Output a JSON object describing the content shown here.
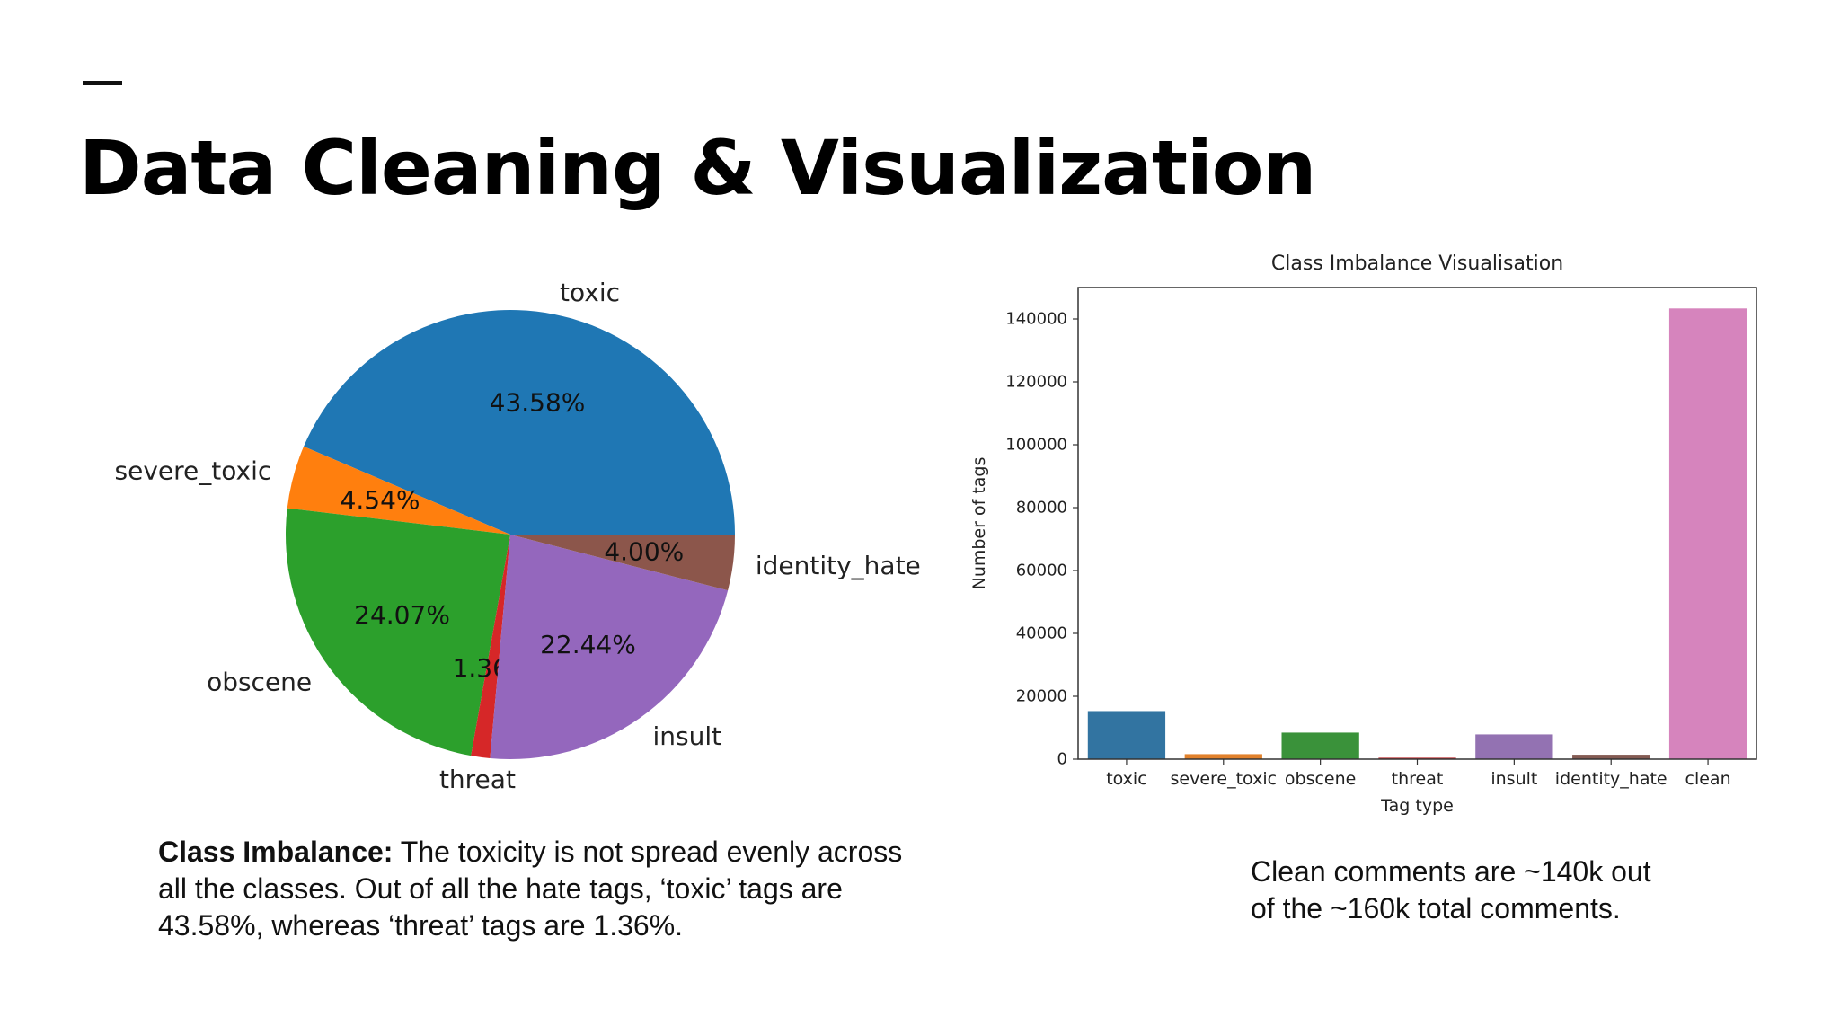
{
  "slide": {
    "title": "Data Cleaning & Visualization"
  },
  "captions": {
    "left_bold": "Class Imbalance:",
    "left_line1": " The toxicity is not spread evenly across",
    "left_line2": "all the classes. Out of all the hate tags, ‘toxic’ tags are",
    "left_line3": "43.58%, whereas ‘threat’ tags are 1.36%.",
    "right_line1": "Clean comments are ~140k out",
    "right_line2": "of the ~160k total comments."
  },
  "chart_data": [
    {
      "type": "pie",
      "title": "",
      "slices": [
        {
          "label": "toxic",
          "value": 43.58,
          "pct_label": "43.58%",
          "color": "#1f77b4"
        },
        {
          "label": "severe_toxic",
          "value": 4.54,
          "pct_label": "4.54%",
          "color": "#ff7f0e"
        },
        {
          "label": "obscene",
          "value": 24.07,
          "pct_label": "24.07%",
          "color": "#2ca02c"
        },
        {
          "label": "threat",
          "value": 1.36,
          "pct_label": "1.36%",
          "color": "#d62728"
        },
        {
          "label": "insult",
          "value": 22.44,
          "pct_label": "22.44%",
          "color": "#9467bd"
        },
        {
          "label": "identity_hate",
          "value": 4.0,
          "pct_label": "4.00%",
          "color": "#8c564b"
        }
      ],
      "start_angle_deg": 0,
      "direction": "counterclockwise"
    },
    {
      "type": "bar",
      "title": "Class Imbalance Visualisation",
      "xlabel": "Tag type",
      "ylabel": "Number of tags",
      "categories": [
        "toxic",
        "severe_toxic",
        "obscene",
        "threat",
        "insult",
        "identity_hate",
        "clean"
      ],
      "values": [
        15294,
        1595,
        8449,
        478,
        7877,
        1405,
        143346
      ],
      "colors": [
        "#3274a1",
        "#e1812c",
        "#3a923a",
        "#c03d3e",
        "#9372b2",
        "#845b53",
        "#d684bd"
      ],
      "ylim": [
        0,
        150000
      ],
      "yticks": [
        0,
        20000,
        40000,
        60000,
        80000,
        100000,
        120000,
        140000
      ],
      "grid": false
    }
  ]
}
